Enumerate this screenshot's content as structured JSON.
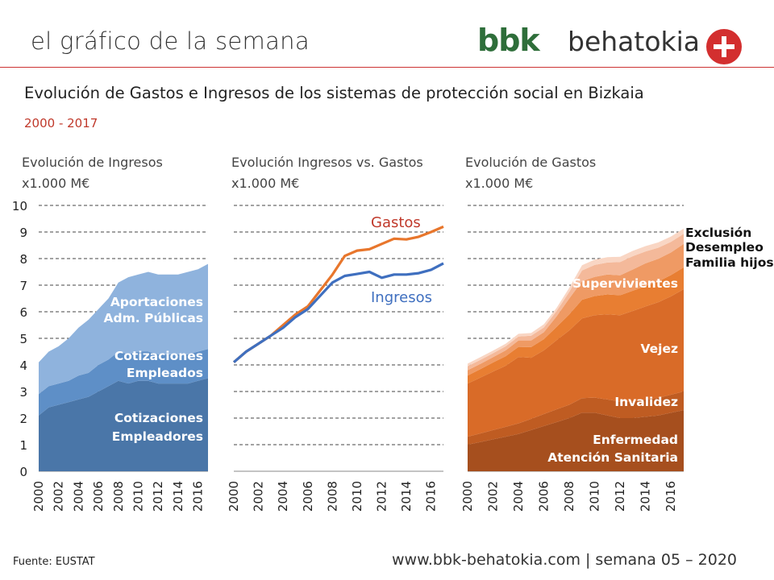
{
  "header": {
    "title": "el gráfico de la semana",
    "logo_brand": "bbk",
    "logo_text": "behatokia"
  },
  "main_title": "Evolución de Gastos e Ingresos de los sistemas de protección social en Bizkaia",
  "subtitle": "2000 - 2017",
  "footer": {
    "source": "Fuente:  EUSTAT",
    "url": "www.bbk-behatokia.com | semana 05 – 2020"
  },
  "colors": {
    "ingresos_empleadores": "#4a76a8",
    "ingresos_empleados": "#5e8fc7",
    "ingresos_admin": "#8fb3dd",
    "gastos_line": "#e8762c",
    "ingresos_line": "#3f6fbf",
    "gastos_title": "#c0392b"
  },
  "chart_data": [
    {
      "type": "area",
      "title": "Evolución de Ingresos",
      "ylabel": "x1.000 M€",
      "ylim": [
        0,
        10
      ],
      "yticks": [
        "0",
        "1",
        "2",
        "3",
        "4",
        "5",
        "6",
        "7",
        "8",
        "9",
        "10"
      ],
      "xticks": [
        "2000",
        "2002",
        "2004",
        "2006",
        "2008",
        "2010",
        "2012",
        "2014",
        "2016"
      ],
      "x": [
        2000,
        2001,
        2002,
        2003,
        2004,
        2005,
        2006,
        2007,
        2008,
        2009,
        2010,
        2011,
        2012,
        2013,
        2014,
        2015,
        2016,
        2017
      ],
      "stacked": true,
      "series": [
        {
          "name": "Cotizaciones Empleadores",
          "label": [
            "Cotizaciones",
            "Empleadores"
          ],
          "color": "#4a76a8",
          "values": [
            2.1,
            2.4,
            2.5,
            2.6,
            2.7,
            2.8,
            3.0,
            3.2,
            3.4,
            3.3,
            3.4,
            3.4,
            3.3,
            3.3,
            3.3,
            3.3,
            3.4,
            3.5
          ]
        },
        {
          "name": "Cotizaciones Empleados",
          "label": [
            "Cotizaciones",
            "Empleados"
          ],
          "color": "#5e8fc7",
          "values": [
            0.8,
            0.8,
            0.8,
            0.8,
            0.9,
            0.9,
            1.0,
            1.0,
            1.1,
            1.1,
            1.1,
            1.1,
            1.1,
            1.1,
            1.1,
            1.1,
            1.1,
            1.1
          ]
        },
        {
          "name": "Aportaciones Adm. Públicas",
          "label": [
            "Aportaciones",
            "Adm. Públicas"
          ],
          "color": "#8fb3dd",
          "values": [
            1.2,
            1.3,
            1.4,
            1.6,
            1.8,
            2.0,
            2.1,
            2.3,
            2.6,
            2.9,
            2.9,
            3.0,
            3.0,
            3.0,
            3.0,
            3.1,
            3.1,
            3.2
          ]
        }
      ]
    },
    {
      "type": "line",
      "title": "Evolución Ingresos vs. Gastos",
      "ylabel": "x1.000 M€",
      "ylim": [
        0,
        10
      ],
      "xticks": [
        "2000",
        "2002",
        "2004",
        "2006",
        "2008",
        "2010",
        "2012",
        "2014",
        "2016"
      ],
      "x": [
        2000,
        2001,
        2002,
        2003,
        2004,
        2005,
        2006,
        2007,
        2008,
        2009,
        2010,
        2011,
        2012,
        2013,
        2014,
        2015,
        2016,
        2017
      ],
      "series": [
        {
          "name": "Gastos",
          "color": "#e8762c",
          "label_color": "#c0392b",
          "values": [
            4.1,
            4.5,
            4.8,
            5.1,
            5.5,
            5.9,
            6.2,
            6.8,
            7.4,
            8.1,
            8.3,
            8.35,
            8.55,
            8.75,
            8.72,
            8.82,
            9.0,
            9.2
          ]
        },
        {
          "name": "Ingresos",
          "color": "#3f6fbf",
          "label_color": "#3f6fbf",
          "values": [
            4.1,
            4.5,
            4.8,
            5.1,
            5.4,
            5.8,
            6.1,
            6.6,
            7.1,
            7.35,
            7.42,
            7.5,
            7.28,
            7.4,
            7.4,
            7.45,
            7.58,
            7.82
          ]
        }
      ]
    },
    {
      "type": "area",
      "title": "Evolución de Gastos",
      "ylabel": "x1.000 M€",
      "ylim": [
        0,
        10
      ],
      "xticks": [
        "2000",
        "2002",
        "2004",
        "2006",
        "2008",
        "2010",
        "2012",
        "2014",
        "2016"
      ],
      "x": [
        2000,
        2001,
        2002,
        2003,
        2004,
        2005,
        2006,
        2007,
        2008,
        2009,
        2010,
        2011,
        2012,
        2013,
        2014,
        2015,
        2016,
        2017
      ],
      "stacked": true,
      "series": [
        {
          "name": "Enfermedad Atención Sanitaria",
          "label": [
            "Enfermedad",
            "Atención Sanitaria"
          ],
          "color": "#a64f1e",
          "values": [
            1.0,
            1.1,
            1.2,
            1.3,
            1.4,
            1.55,
            1.7,
            1.85,
            2.0,
            2.2,
            2.2,
            2.1,
            2.0,
            2.0,
            2.05,
            2.1,
            2.2,
            2.3
          ]
        },
        {
          "name": "Invalidez",
          "label": [
            "Invalidez"
          ],
          "color": "#bf5c22",
          "values": [
            0.3,
            0.32,
            0.35,
            0.37,
            0.4,
            0.42,
            0.45,
            0.48,
            0.5,
            0.55,
            0.57,
            0.6,
            0.62,
            0.63,
            0.65,
            0.66,
            0.68,
            0.7
          ]
        },
        {
          "name": "Vejez",
          "label": [
            "Vejez"
          ],
          "color": "#d96b28",
          "values": [
            2.0,
            2.1,
            2.2,
            2.3,
            2.5,
            2.3,
            2.4,
            2.6,
            2.8,
            3.0,
            3.1,
            3.2,
            3.25,
            3.4,
            3.5,
            3.6,
            3.7,
            3.85
          ]
        },
        {
          "name": "Supervivientes",
          "label": [
            "Supervivientes"
          ],
          "color": "#e87e32",
          "values": [
            0.3,
            0.32,
            0.34,
            0.36,
            0.38,
            0.4,
            0.42,
            0.5,
            0.6,
            0.7,
            0.72,
            0.75,
            0.75,
            0.76,
            0.77,
            0.78,
            0.8,
            0.82
          ]
        },
        {
          "name": "Familia hijos",
          "label": [
            "Familia hijos"
          ],
          "color": "#ef9a64",
          "values": [
            0.2,
            0.2,
            0.2,
            0.22,
            0.24,
            0.25,
            0.26,
            0.4,
            0.6,
            0.7,
            0.72,
            0.75,
            0.75,
            0.8,
            0.85,
            0.85,
            0.85,
            0.88
          ]
        },
        {
          "name": "Desempleo",
          "label": [
            "Desempleo"
          ],
          "color": "#f4b99a",
          "values": [
            0.15,
            0.15,
            0.15,
            0.15,
            0.15,
            0.18,
            0.18,
            0.2,
            0.25,
            0.4,
            0.45,
            0.45,
            0.5,
            0.5,
            0.45,
            0.42,
            0.4,
            0.38
          ]
        },
        {
          "name": "Exclusión",
          "label": [
            "Exclusión"
          ],
          "color": "#f9d6c4",
          "values": [
            0.1,
            0.1,
            0.1,
            0.1,
            0.1,
            0.1,
            0.12,
            0.12,
            0.15,
            0.2,
            0.2,
            0.2,
            0.2,
            0.2,
            0.2,
            0.2,
            0.2,
            0.2
          ]
        }
      ]
    }
  ]
}
